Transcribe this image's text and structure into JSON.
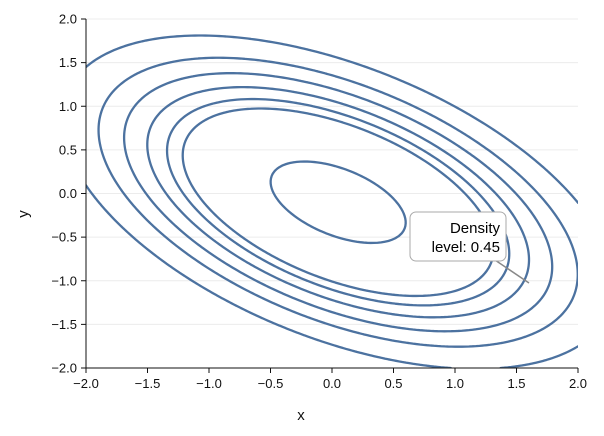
{
  "chart_data": {
    "type": "contour",
    "xlabel": "x",
    "ylabel": "y",
    "xlim": [
      -2.0,
      2.0
    ],
    "ylim": [
      -2.0,
      2.0
    ],
    "x_ticks": [
      "−2.0",
      "−1.5",
      "−1.0",
      "−0.5",
      "0.0",
      "0.5",
      "1.0",
      "1.5",
      "2.0"
    ],
    "y_ticks": [
      "2.0",
      "1.5",
      "1.0",
      "0.5",
      "0.0",
      "−0.5",
      "−1.0",
      "−1.5",
      "−2.0"
    ],
    "grid": "horizontal",
    "line_color": "#4c72a0",
    "density": {
      "mean": [
        0.05,
        -0.1
      ],
      "sx": 1.0,
      "sy": 0.85,
      "rho": -0.5
    },
    "levels": [
      0.08,
      0.15,
      0.22,
      0.3,
      0.38,
      0.45,
      0.86
    ],
    "annotation": {
      "line1": "Density",
      "line2": "level: 0.45",
      "point": [
        1.58,
        -0.98
      ]
    }
  }
}
